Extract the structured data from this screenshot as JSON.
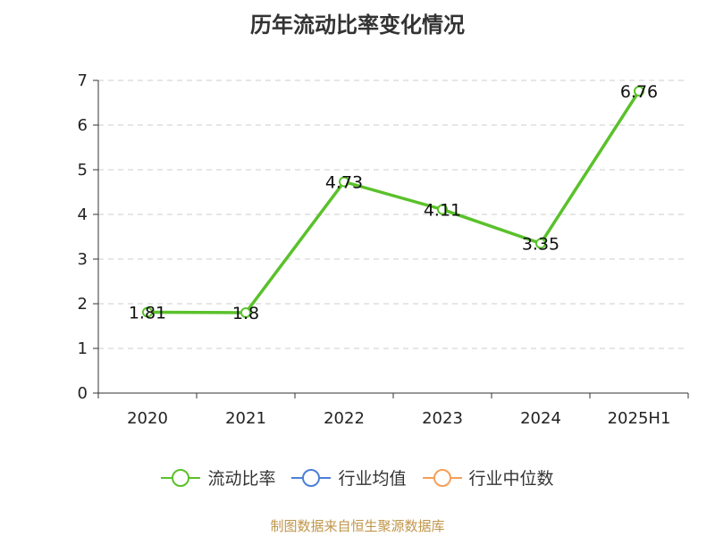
{
  "chart_data": {
    "type": "line",
    "title": "历年流动比率变化情况",
    "categories": [
      "2020",
      "2021",
      "2022",
      "2023",
      "2024",
      "2025H1"
    ],
    "series": [
      {
        "name": "流动比率",
        "values": [
          1.81,
          1.8,
          4.73,
          4.11,
          3.35,
          6.76
        ],
        "labels": [
          "1.81",
          "1.8",
          "4.73",
          "4.11",
          "3.35",
          "6.76"
        ],
        "color": "#5ac12a"
      }
    ],
    "legend": [
      {
        "name": "流动比率",
        "color": "#5ac12a"
      },
      {
        "name": "行业均值",
        "color": "#4c7fd8"
      },
      {
        "name": "行业中位数",
        "color": "#f4a05a"
      }
    ],
    "ylim": [
      0,
      7
    ],
    "yticks": [
      0,
      1,
      2,
      3,
      4,
      5,
      6,
      7
    ],
    "ytick_labels": [
      "0",
      "1",
      "2",
      "3",
      "4",
      "5",
      "6",
      "7"
    ],
    "grid": "horizontal-dashed",
    "legend_position": "bottom",
    "source": "制图数据来自恒生聚源数据库"
  }
}
